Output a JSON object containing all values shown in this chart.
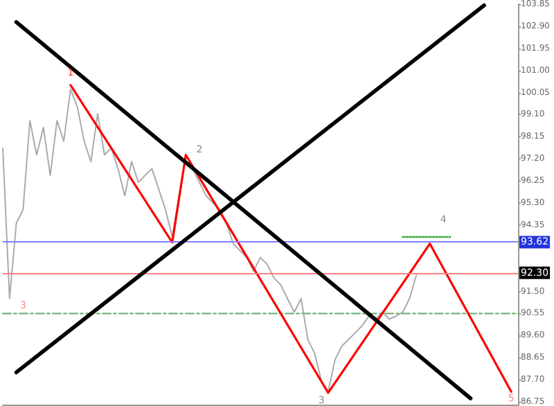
{
  "chart_data": {
    "type": "line",
    "categories": [
      null,
      null,
      null,
      null,
      null,
      null,
      null,
      null,
      null,
      null,
      null,
      null,
      null,
      null,
      null,
      null,
      null,
      null,
      null,
      null,
      null,
      null,
      null,
      null,
      null,
      null,
      null,
      null,
      null,
      null,
      null,
      null,
      null,
      null,
      null,
      null,
      null,
      null,
      null,
      null,
      null,
      null,
      null,
      null,
      null,
      null,
      null,
      null,
      null,
      null,
      null,
      null,
      null,
      null,
      null,
      null,
      null,
      null,
      null,
      null,
      null,
      null,
      null,
      null,
      null,
      null,
      null,
      null,
      null,
      null,
      null,
      null,
      null,
      null,
      null,
      null,
      null
    ],
    "series": [
      {
        "color": "#66aa66",
        "line_style": "dashed",
        "values": [
          90.55,
          90.55,
          90.55,
          90.55,
          90.55,
          90.55,
          90.55,
          90.55,
          90.55,
          90.55,
          90.55,
          90.55,
          90.55,
          90.55,
          90.55,
          90.55,
          90.55,
          90.55,
          90.55,
          90.55,
          90.55,
          90.55,
          90.55,
          90.55,
          90.55,
          90.55,
          90.55,
          90.55,
          90.55,
          90.55,
          90.55,
          90.55,
          90.55,
          90.55,
          90.55,
          90.55,
          90.55,
          90.55,
          90.55,
          90.55,
          90.55,
          90.55,
          90.55,
          90.55,
          90.55,
          90.55,
          90.55,
          90.55,
          90.55,
          90.55,
          90.55,
          90.55,
          90.55,
          90.55,
          90.55,
          90.55,
          90.55,
          90.55,
          90.55,
          90.55,
          90.55,
          90.55,
          90.55,
          90.55,
          90.55,
          90.55,
          90.55,
          90.55,
          90.55,
          90.55,
          90.55,
          90.55,
          90.55,
          90.55,
          90.55,
          90.55,
          90.55
        ]
      },
      {
        "color": "#aaaaaa",
        "values": [
          97.66,
          91.19,
          94.43,
          95.02,
          98.84,
          97.37,
          98.55,
          96.49,
          98.84,
          97.96,
          100.19,
          99.43,
          97.96,
          97.08,
          99.14,
          97.37,
          97.66,
          96.78,
          95.61,
          97.08,
          96.19,
          96.49,
          96.78,
          95.9,
          95.02,
          93.84,
          95.61,
          97.37,
          96.78,
          96.19,
          95.61,
          95.31,
          95.02,
          94.43,
          93.55,
          93.25,
          92.96,
          92.37,
          92.96,
          92.66,
          92.08,
          91.78,
          91.19,
          90.61,
          91.19,
          89.43,
          88.84,
          87.66,
          87.19,
          88.55,
          89.14,
          89.43,
          89.72,
          90.02,
          90.43,
          90.31,
          90.61,
          90.31,
          90.43,
          90.61,
          91.19,
          92.19,
          null,
          null,
          null,
          null,
          null,
          null,
          null,
          null,
          null,
          null,
          null,
          null,
          null,
          null,
          null
        ]
      },
      {
        "color": "#ff0000",
        "values": [
          null,
          null,
          null,
          null,
          null,
          null,
          null,
          null,
          null,
          null,
          100.37,
          null,
          null,
          null,
          null,
          null,
          null,
          null,
          null,
          null,
          null,
          null,
          null,
          null,
          null,
          93.61,
          null,
          97.37,
          null,
          null,
          null,
          null,
          null,
          null,
          null,
          null,
          null,
          null,
          null,
          null,
          null,
          null,
          null,
          null,
          null,
          null,
          null,
          null,
          87.14,
          null,
          null,
          null,
          null,
          null,
          null,
          null,
          null,
          null,
          null,
          null,
          null,
          null,
          null,
          93.55,
          null,
          null,
          null,
          null,
          null,
          null,
          null,
          null,
          null,
          null,
          null,
          87.19,
          null
        ]
      },
      {
        "color": "#000000",
        "values": [
          null,
          null,
          103.08,
          null,
          null,
          null,
          null,
          null,
          null,
          null,
          null,
          null,
          null,
          null,
          null,
          null,
          null,
          null,
          null,
          null,
          null,
          null,
          null,
          null,
          null,
          null,
          null,
          null,
          null,
          null,
          null,
          null,
          null,
          null,
          null,
          null,
          null,
          null,
          null,
          null,
          null,
          null,
          null,
          null,
          null,
          null,
          null,
          null,
          null,
          null,
          null,
          null,
          null,
          null,
          null,
          null,
          null,
          null,
          null,
          null,
          null,
          null,
          null,
          null,
          null,
          null,
          null,
          null,
          null,
          86.9,
          null,
          null,
          null,
          null,
          null,
          null,
          null
        ]
      },
      {
        "color": "#000000",
        "values": [
          null,
          null,
          88.02,
          null,
          null,
          null,
          null,
          null,
          null,
          null,
          null,
          null,
          null,
          null,
          null,
          null,
          null,
          null,
          null,
          null,
          null,
          null,
          null,
          null,
          null,
          null,
          null,
          null,
          null,
          null,
          null,
          null,
          null,
          null,
          null,
          null,
          null,
          null,
          null,
          null,
          null,
          null,
          null,
          null,
          null,
          null,
          null,
          null,
          null,
          null,
          null,
          null,
          null,
          null,
          null,
          null,
          null,
          null,
          null,
          null,
          null,
          null,
          null,
          null,
          null,
          null,
          null,
          null,
          null,
          null,
          null,
          103.8,
          null,
          null,
          null,
          null,
          null
        ]
      },
      {
        "color": "#33aa33",
        "line_style": "dotted",
        "values": [
          null,
          null,
          null,
          null,
          null,
          null,
          null,
          null,
          null,
          null,
          null,
          null,
          null,
          null,
          null,
          null,
          null,
          null,
          null,
          null,
          null,
          null,
          null,
          null,
          null,
          null,
          null,
          null,
          null,
          null,
          null,
          null,
          null,
          null,
          null,
          null,
          null,
          null,
          null,
          null,
          null,
          null,
          null,
          null,
          null,
          null,
          null,
          null,
          null,
          null,
          null,
          null,
          null,
          null,
          null,
          null,
          null,
          null,
          null,
          93.84,
          null,
          null,
          null,
          null,
          null,
          null,
          93.84,
          null,
          null,
          null,
          null,
          null,
          null,
          null,
          null,
          null,
          null
        ]
      }
    ],
    "ylim": [
      86.6,
      103.85
    ],
    "yticks": [
      {
        "value": 86.75,
        "label": "86.75"
      },
      {
        "value": 87.7,
        "label": "87.70"
      },
      {
        "value": 88.65,
        "label": "88.65"
      },
      {
        "value": 89.6,
        "label": "89.60"
      },
      {
        "value": 90.55,
        "label": "90.55"
      },
      {
        "value": 91.5,
        "label": "91.50"
      },
      {
        "value": 94.35,
        "label": "94.35"
      },
      {
        "value": 95.3,
        "label": "95.30"
      },
      {
        "value": 96.25,
        "label": "96.25"
      },
      {
        "value": 97.2,
        "label": "97.20"
      },
      {
        "value": 98.15,
        "label": "98.15"
      },
      {
        "value": 99.1,
        "label": "99.10"
      },
      {
        "value": 100.05,
        "label": "100.05"
      },
      {
        "value": 101.0,
        "label": "101.00"
      },
      {
        "value": 101.95,
        "label": "101.95"
      },
      {
        "value": 102.9,
        "label": "102.90"
      },
      {
        "value": 103.85,
        "label": "103.85"
      }
    ],
    "tick_labels": "y",
    "grid": false,
    "line_style": "solid",
    "ref_lines": [
      {
        "axis": "y",
        "value": 93.62,
        "label": "93.62",
        "color": "#8080ff"
      },
      {
        "axis": "y",
        "value": 92.3,
        "label": "92.30",
        "color": "#ff8080"
      }
    ],
    "annotations": [
      "1",
      "2",
      "3",
      "3",
      "4",
      "5"
    ]
  }
}
